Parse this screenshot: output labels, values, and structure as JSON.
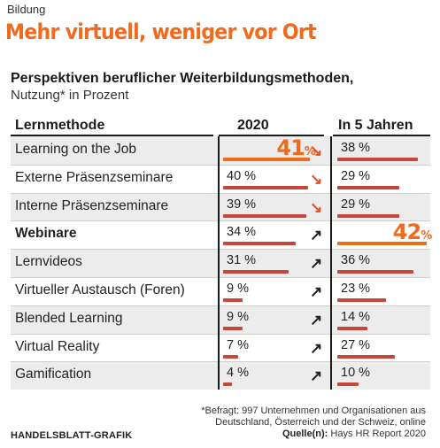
{
  "header": {
    "kicker": "Bildung",
    "title": "Mehr virtuell, weniger vor Ort",
    "subtitle": "Perspektiven beruflicher Weiterbildungsmethoden,",
    "subtitle2": "Nutzung* in Prozent"
  },
  "chart_data": {
    "type": "bar",
    "title": "Perspektiven beruflicher Weiterbildungsmethoden,",
    "ylabel": "Nutzung* in Prozent",
    "column_headers": [
      "Lernmethode",
      "2020",
      "In 5 Jahren"
    ],
    "categories": [
      "Learning on the Job",
      "Externe Präsenzseminare",
      "Interne Präsenzseminare",
      "Webinare",
      "Lernvideos",
      "Virtueller Austausch (Foren)",
      "Blended Learning",
      "Virtual Reality",
      "Gamification"
    ],
    "series": [
      {
        "name": "2020",
        "values": [
          41,
          40,
          39,
          34,
          31,
          9,
          9,
          7,
          4
        ],
        "labels": [
          "41",
          "40 %",
          "39 %",
          "34 %",
          "31 %",
          "9 %",
          "9 %",
          "7 %",
          "4 %"
        ]
      },
      {
        "name": "In 5 Jahren",
        "values": [
          38,
          29,
          29,
          42,
          36,
          23,
          14,
          27,
          10
        ],
        "labels": [
          "38 %",
          "29 %",
          "29 %",
          "42",
          "36 %",
          "23 %",
          "14 %",
          "27 %",
          "10 %"
        ]
      }
    ],
    "highlight_suffix": "%",
    "trend": [
      "down",
      "down",
      "down",
      "up",
      "up",
      "up",
      "up",
      "up",
      "up"
    ],
    "bold_rows": [
      3
    ],
    "ylim": [
      0,
      45
    ],
    "colors": {
      "bar": "#c8453a",
      "highlight": "#f26a1b",
      "down_arrow": "#e4502a",
      "up_arrow": "#222222"
    }
  },
  "footer": {
    "footnote_line1": "*Befragt: 997 Unternehmen und Organisationen aus",
    "footnote_line2": "Deutschland, Österreich und der Schweiz, online",
    "source_label": "Quelle(n):",
    "source_text": " Hays HR Report 2020",
    "brand": "HANDELSBLATT-GRAFIK"
  }
}
